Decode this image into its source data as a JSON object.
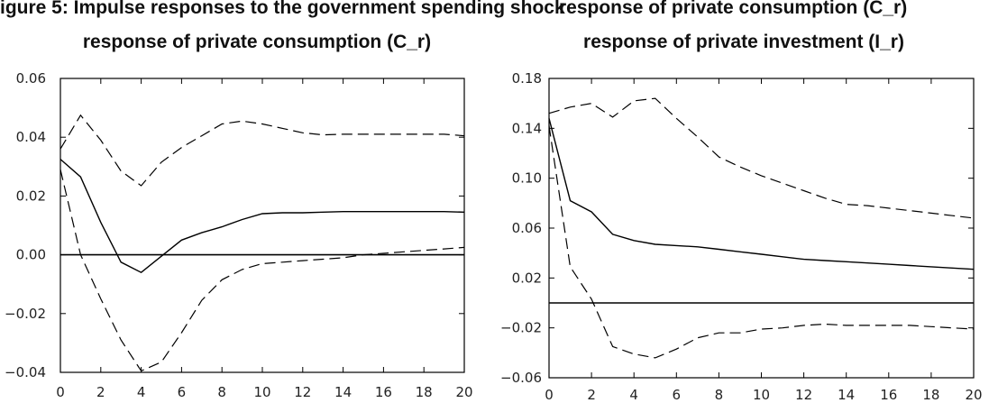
{
  "header_clip": {
    "left": "igure 5: Impulse responses to the government spending shock",
    "right": "response of private consumption (C_r)"
  },
  "chart_data": [
    {
      "type": "line",
      "title": "response of private consumption (C_r)",
      "xlim": [
        0,
        20
      ],
      "ylim": [
        -0.04,
        0.06
      ],
      "x_ticks": [
        0,
        2,
        4,
        6,
        8,
        10,
        12,
        14,
        16,
        18,
        20
      ],
      "x_tick_labels": [
        "0",
        "2",
        "4",
        "6",
        "8",
        "10",
        "12",
        "14",
        "16",
        "18",
        "20"
      ],
      "y_ticks": [
        0.06,
        0.04,
        0.02,
        0.0,
        -0.02,
        -0.04
      ],
      "y_tick_labels": [
        "0.06",
        "0.04",
        "0.02",
        "0.00",
        "−0.02",
        "−0.04"
      ],
      "zero_line": 0,
      "x": [
        0,
        1,
        2,
        3,
        4,
        5,
        6,
        7,
        8,
        9,
        10,
        11,
        12,
        13,
        14,
        15,
        16,
        17,
        18,
        19,
        20
      ],
      "series": [
        {
          "role": "response",
          "style": "solid",
          "values": [
            0.0325,
            0.0265,
            0.011,
            -0.0025,
            -0.006,
            -0.0005,
            0.005,
            0.0075,
            0.0095,
            0.012,
            0.014,
            0.0143,
            0.0143,
            0.0145,
            0.0147,
            0.0147,
            0.0147,
            0.0147,
            0.0147,
            0.0147,
            0.0145
          ]
        },
        {
          "role": "upper-band",
          "style": "dashed",
          "values": [
            0.036,
            0.0475,
            0.039,
            0.0285,
            0.0235,
            0.0315,
            0.0365,
            0.0405,
            0.0445,
            0.0455,
            0.0445,
            0.043,
            0.0415,
            0.0408,
            0.041,
            0.041,
            0.041,
            0.041,
            0.041,
            0.041,
            0.0405
          ]
        },
        {
          "role": "lower-band",
          "style": "dashed",
          "values": [
            0.029,
            0.0,
            -0.015,
            -0.029,
            -0.0395,
            -0.0365,
            -0.0265,
            -0.0155,
            -0.0085,
            -0.005,
            -0.003,
            -0.0025,
            -0.002,
            -0.0015,
            -0.001,
            0.0,
            0.0005,
            0.001,
            0.0015,
            0.002,
            0.0025
          ]
        }
      ]
    },
    {
      "type": "line",
      "title": "response of private investment (I_r)",
      "xlim": [
        0,
        20
      ],
      "ylim": [
        -0.06,
        0.18
      ],
      "x_ticks": [
        0,
        2,
        4,
        6,
        8,
        10,
        12,
        14,
        16,
        18,
        20
      ],
      "x_tick_labels": [
        "0",
        "2",
        "4",
        "6",
        "8",
        "10",
        "12",
        "14",
        "16",
        "18",
        "20"
      ],
      "y_ticks": [
        0.18,
        0.14,
        0.1,
        0.06,
        0.02,
        -0.02,
        -0.06
      ],
      "y_tick_labels": [
        "0.18",
        "0.14",
        "0.10",
        "0.06",
        "0.02",
        "−0.02",
        "−0.06"
      ],
      "zero_line": 0,
      "x": [
        0,
        1,
        2,
        3,
        4,
        5,
        6,
        7,
        8,
        9,
        10,
        11,
        12,
        13,
        14,
        15,
        16,
        17,
        18,
        19,
        20
      ],
      "series": [
        {
          "role": "response",
          "style": "solid",
          "values": [
            0.148,
            0.082,
            0.073,
            0.055,
            0.05,
            0.047,
            0.046,
            0.045,
            0.043,
            0.041,
            0.039,
            0.037,
            0.035,
            0.034,
            0.033,
            0.032,
            0.031,
            0.03,
            0.029,
            0.028,
            0.027
          ]
        },
        {
          "role": "upper-band",
          "style": "dashed",
          "values": [
            0.152,
            0.157,
            0.16,
            0.149,
            0.162,
            0.164,
            0.148,
            0.133,
            0.117,
            0.109,
            0.102,
            0.096,
            0.09,
            0.084,
            0.079,
            0.078,
            0.076,
            0.074,
            0.072,
            0.07,
            0.068
          ]
        },
        {
          "role": "lower-band",
          "style": "dashed",
          "values": [
            0.142,
            0.029,
            0.003,
            -0.035,
            -0.041,
            -0.044,
            -0.037,
            -0.028,
            -0.024,
            -0.024,
            -0.021,
            -0.02,
            -0.018,
            -0.017,
            -0.018,
            -0.018,
            -0.018,
            -0.018,
            -0.019,
            -0.02,
            -0.021
          ]
        }
      ]
    }
  ]
}
